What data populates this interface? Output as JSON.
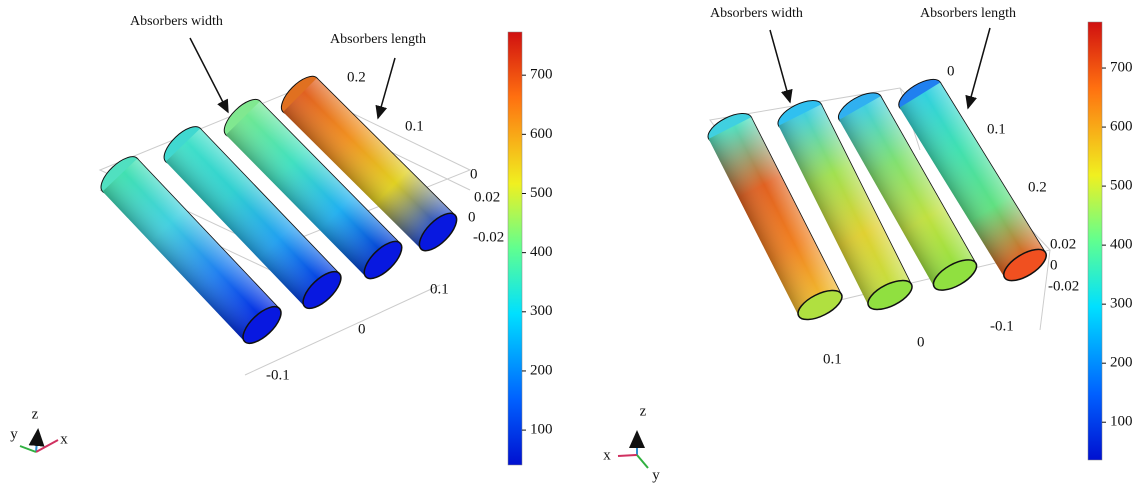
{
  "panels": [
    {
      "annotations": [
        "Absorbers width",
        "Absorbers length"
      ],
      "axis_labels": [
        "0.2",
        "0.1",
        "0",
        "0.02",
        "0",
        "-0.02",
        "0.1",
        "0",
        "-0.1"
      ],
      "triad": [
        "z",
        "y",
        "x"
      ],
      "colorbar": {
        "lim": [
          41,
          773
        ],
        "ticks": [
          100,
          200,
          300,
          400,
          500,
          600,
          700
        ]
      }
    },
    {
      "annotations": [
        "Absorbers width",
        "Absorbers length"
      ],
      "axis_labels": [
        "0",
        "0.1",
        "0.2",
        "0.02",
        "0",
        "-0.02",
        "-0.1",
        "0",
        "0.1"
      ],
      "triad": [
        "z",
        "x",
        "y"
      ],
      "colorbar": {
        "lim": [
          36,
          778
        ],
        "ticks": [
          100,
          200,
          300,
          400,
          500,
          600,
          700
        ]
      }
    }
  ]
}
